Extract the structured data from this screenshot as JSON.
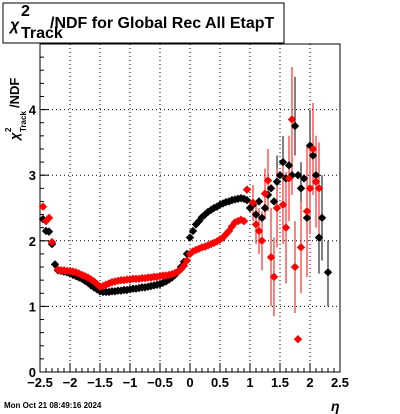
{
  "title": {
    "symbol": "χ",
    "superscript": "2",
    "subscript": "Track",
    "rest": "/NDF for Global Rec All EtapT"
  },
  "date_stamp": "Mon Oct 21 08:49:16 2024",
  "y_axis": {
    "symbol": "χ",
    "superscript": "2",
    "subscript": "Track",
    "rest": "/NDF"
  },
  "x_axis": {
    "label": "η"
  },
  "chart_data": {
    "type": "scatter",
    "title": "χ2Track/NDF for Global Rec All EtapT",
    "xlabel": "η",
    "ylabel": "χ2Track/NDF",
    "xlim": [
      -2.5,
      2.5
    ],
    "ylim": [
      0,
      5
    ],
    "x_ticks": [
      -2.5,
      -2,
      -1.5,
      -1,
      -0.5,
      0,
      0.5,
      1,
      1.5,
      2,
      2.5
    ],
    "x_tick_labels": [
      "−2.5",
      "−2",
      "−1.5",
      "−1",
      "−0.5",
      "0",
      "0.5",
      "1",
      "1.5",
      "2",
      "2.5"
    ],
    "y_ticks": [
      0,
      1,
      2,
      3,
      4
    ],
    "y_tick_labels": [
      "0",
      "1",
      "2",
      "3",
      "4"
    ],
    "grid": true,
    "legend": "none",
    "series": [
      {
        "color": "#000000",
        "marker": "diamond",
        "points": [
          [
            -2.45,
            2.33
          ],
          [
            -2.4,
            2.15
          ],
          [
            -2.35,
            2.14
          ],
          [
            -2.3,
            1.95
          ],
          [
            -2.25,
            1.64
          ],
          [
            -2.2,
            1.55
          ],
          [
            -2.15,
            1.54
          ],
          [
            -2.1,
            1.53
          ],
          [
            -2.05,
            1.52
          ],
          [
            -2.0,
            1.5
          ],
          [
            -1.95,
            1.48
          ],
          [
            -1.9,
            1.46
          ],
          [
            -1.85,
            1.44
          ],
          [
            -1.8,
            1.42
          ],
          [
            -1.75,
            1.39
          ],
          [
            -1.7,
            1.36
          ],
          [
            -1.65,
            1.32
          ],
          [
            -1.6,
            1.29
          ],
          [
            -1.55,
            1.26
          ],
          [
            -1.5,
            1.23
          ],
          [
            -1.45,
            1.22
          ],
          [
            -1.4,
            1.22
          ],
          [
            -1.35,
            1.22
          ],
          [
            -1.3,
            1.23
          ],
          [
            -1.25,
            1.23
          ],
          [
            -1.2,
            1.24
          ],
          [
            -1.15,
            1.24
          ],
          [
            -1.1,
            1.25
          ],
          [
            -1.05,
            1.25
          ],
          [
            -1.0,
            1.26
          ],
          [
            -0.95,
            1.27
          ],
          [
            -0.9,
            1.27
          ],
          [
            -0.85,
            1.28
          ],
          [
            -0.8,
            1.29
          ],
          [
            -0.75,
            1.29
          ],
          [
            -0.7,
            1.3
          ],
          [
            -0.65,
            1.31
          ],
          [
            -0.6,
            1.32
          ],
          [
            -0.55,
            1.33
          ],
          [
            -0.5,
            1.34
          ],
          [
            -0.45,
            1.36
          ],
          [
            -0.4,
            1.38
          ],
          [
            -0.35,
            1.41
          ],
          [
            -0.3,
            1.44
          ],
          [
            -0.25,
            1.48
          ],
          [
            -0.2,
            1.53
          ],
          [
            -0.15,
            1.6
          ],
          [
            -0.1,
            1.68
          ],
          [
            -0.05,
            1.8
          ],
          [
            0.0,
            2.05
          ],
          [
            0.05,
            2.15
          ],
          [
            0.1,
            2.25
          ],
          [
            0.15,
            2.3
          ],
          [
            0.2,
            2.36
          ],
          [
            0.25,
            2.4
          ],
          [
            0.3,
            2.44
          ],
          [
            0.35,
            2.47
          ],
          [
            0.4,
            2.5
          ],
          [
            0.45,
            2.52
          ],
          [
            0.5,
            2.55
          ],
          [
            0.55,
            2.57
          ],
          [
            0.6,
            2.59
          ],
          [
            0.65,
            2.6
          ],
          [
            0.7,
            2.62
          ],
          [
            0.75,
            2.63
          ],
          [
            0.8,
            2.64
          ],
          [
            0.85,
            2.65
          ],
          [
            0.9,
            2.64
          ],
          [
            0.95,
            2.62
          ],
          [
            1.0,
            2.5
          ],
          [
            1.05,
            2.55
          ],
          [
            1.1,
            2.4
          ],
          [
            1.15,
            2.6
          ],
          [
            1.2,
            2.35
          ],
          [
            1.25,
            2.5
          ],
          [
            1.3,
            2.7
          ],
          [
            1.35,
            2.8
          ],
          [
            1.4,
            2.6
          ],
          [
            1.45,
            2.9
          ],
          [
            1.5,
            3.0
          ],
          [
            1.55,
            3.2
          ],
          [
            1.6,
            2.95
          ],
          [
            1.65,
            3.15
          ],
          [
            1.7,
            3.0
          ],
          [
            1.75,
            3.75
          ],
          [
            1.8,
            3.0
          ],
          [
            1.85,
            2.8
          ],
          [
            1.9,
            2.95
          ],
          [
            1.95,
            2.35
          ],
          [
            2.0,
            3.45
          ],
          [
            2.05,
            3.3
          ],
          [
            2.1,
            3.0
          ],
          [
            2.15,
            2.05
          ],
          [
            2.2,
            2.35
          ],
          [
            2.3,
            1.52
          ]
        ]
      },
      {
        "color": "#ff0000",
        "marker": "diamond",
        "points": [
          [
            -2.45,
            2.52
          ],
          [
            -2.4,
            2.3
          ],
          [
            -2.35,
            2.35
          ],
          [
            -2.3,
            1.98
          ],
          [
            -2.2,
            1.56
          ],
          [
            -2.15,
            1.55
          ],
          [
            -2.1,
            1.55
          ],
          [
            -2.05,
            1.54
          ],
          [
            -2.0,
            1.54
          ],
          [
            -1.95,
            1.53
          ],
          [
            -1.9,
            1.52
          ],
          [
            -1.85,
            1.5
          ],
          [
            -1.8,
            1.48
          ],
          [
            -1.75,
            1.46
          ],
          [
            -1.7,
            1.44
          ],
          [
            -1.65,
            1.41
          ],
          [
            -1.6,
            1.38
          ],
          [
            -1.55,
            1.34
          ],
          [
            -1.5,
            1.3
          ],
          [
            -1.45,
            1.31
          ],
          [
            -1.4,
            1.33
          ],
          [
            -1.35,
            1.35
          ],
          [
            -1.3,
            1.37
          ],
          [
            -1.25,
            1.38
          ],
          [
            -1.2,
            1.39
          ],
          [
            -1.15,
            1.4
          ],
          [
            -1.1,
            1.4
          ],
          [
            -1.05,
            1.41
          ],
          [
            -1.0,
            1.41
          ],
          [
            -0.95,
            1.42
          ],
          [
            -0.9,
            1.42
          ],
          [
            -0.85,
            1.42
          ],
          [
            -0.8,
            1.43
          ],
          [
            -0.75,
            1.43
          ],
          [
            -0.7,
            1.44
          ],
          [
            -0.65,
            1.44
          ],
          [
            -0.6,
            1.45
          ],
          [
            -0.55,
            1.45
          ],
          [
            -0.5,
            1.46
          ],
          [
            -0.45,
            1.47
          ],
          [
            -0.4,
            1.47
          ],
          [
            -0.35,
            1.48
          ],
          [
            -0.3,
            1.49
          ],
          [
            -0.25,
            1.51
          ],
          [
            -0.2,
            1.53
          ],
          [
            -0.15,
            1.57
          ],
          [
            -0.1,
            1.62
          ],
          [
            -0.05,
            1.7
          ],
          [
            0.0,
            1.8
          ],
          [
            0.05,
            1.84
          ],
          [
            0.1,
            1.86
          ],
          [
            0.15,
            1.88
          ],
          [
            0.2,
            1.9
          ],
          [
            0.25,
            1.91
          ],
          [
            0.3,
            1.93
          ],
          [
            0.35,
            1.95
          ],
          [
            0.4,
            1.97
          ],
          [
            0.45,
            1.99
          ],
          [
            0.5,
            2.02
          ],
          [
            0.55,
            2.05
          ],
          [
            0.6,
            2.1
          ],
          [
            0.65,
            2.15
          ],
          [
            0.7,
            2.22
          ],
          [
            0.75,
            2.28
          ],
          [
            0.8,
            2.3
          ],
          [
            0.85,
            2.32
          ],
          [
            0.9,
            2.3
          ],
          [
            0.95,
            2.78
          ],
          [
            1.05,
            2.58
          ],
          [
            1.1,
            2.25
          ],
          [
            1.15,
            2.15
          ],
          [
            1.2,
            2.0
          ],
          [
            1.25,
            2.72
          ],
          [
            1.3,
            2.92
          ],
          [
            1.35,
            1.75
          ],
          [
            1.4,
            1.45
          ],
          [
            1.45,
            2.5
          ],
          [
            1.55,
            2.55
          ],
          [
            1.6,
            2.2
          ],
          [
            1.65,
            2.95
          ],
          [
            1.7,
            3.85
          ],
          [
            1.75,
            1.6
          ],
          [
            1.8,
            0.5
          ],
          [
            1.85,
            1.9
          ],
          [
            1.95,
            2.45
          ],
          [
            2.0,
            2.8
          ],
          [
            2.05,
            3.4
          ],
          [
            2.1,
            2.9
          ],
          [
            2.15,
            2.8
          ]
        ],
        "error_bars": [
          [
            1.05,
            2.3,
            2.85
          ],
          [
            1.1,
            1.95,
            2.55
          ],
          [
            1.15,
            1.8,
            2.5
          ],
          [
            1.2,
            1.55,
            2.45
          ],
          [
            1.25,
            2.35,
            3.1
          ],
          [
            1.3,
            2.45,
            3.4
          ],
          [
            1.35,
            1.0,
            2.5
          ],
          [
            1.4,
            0.85,
            2.05
          ],
          [
            1.45,
            1.9,
            3.1
          ],
          [
            1.55,
            1.95,
            3.15
          ],
          [
            1.6,
            1.35,
            3.05
          ],
          [
            1.65,
            2.3,
            3.6
          ],
          [
            1.7,
            2.7,
            4.65
          ],
          [
            1.75,
            0.9,
            2.3
          ],
          [
            1.85,
            1.2,
            2.6
          ],
          [
            1.95,
            1.45,
            3.45
          ],
          [
            2.0,
            2.1,
            3.5
          ],
          [
            2.05,
            2.7,
            4.1
          ],
          [
            2.1,
            2.2,
            3.6
          ],
          [
            2.15,
            2.1,
            3.5
          ]
        ]
      }
    ],
    "black_error_bars": [
      [
        1.45,
        2.5,
        3.3
      ],
      [
        1.55,
        2.75,
        3.6
      ],
      [
        1.65,
        2.7,
        3.6
      ],
      [
        1.75,
        3.3,
        4.5
      ],
      [
        1.85,
        2.4,
        3.2
      ],
      [
        1.95,
        1.8,
        2.9
      ],
      [
        2.0,
        2.9,
        4.0
      ],
      [
        2.05,
        2.7,
        3.9
      ],
      [
        2.1,
        2.4,
        3.6
      ],
      [
        2.15,
        1.5,
        2.6
      ],
      [
        2.2,
        1.7,
        3.0
      ],
      [
        2.3,
        1.0,
        2.0
      ]
    ]
  }
}
